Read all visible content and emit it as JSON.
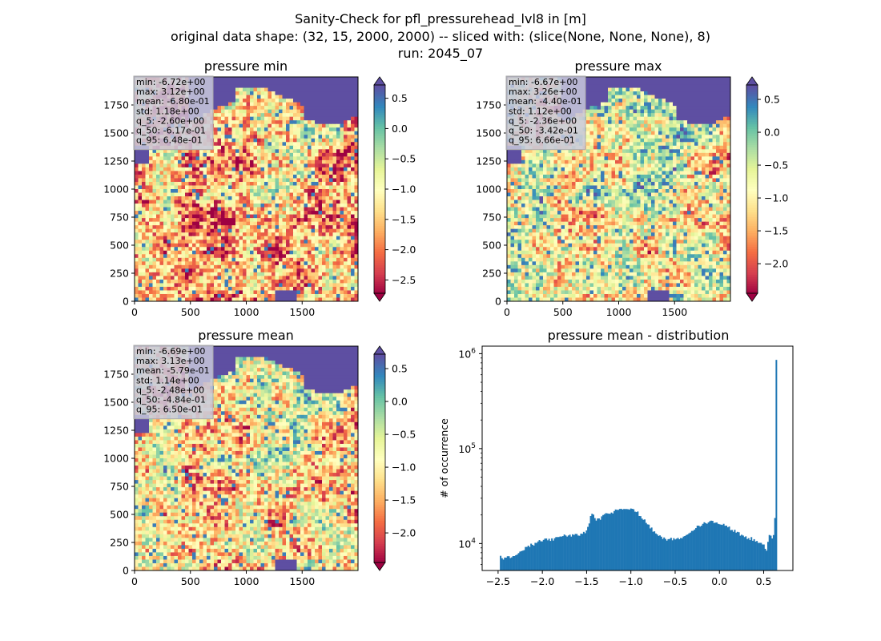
{
  "figure": {
    "suptitle": [
      "Sanity-Check for pfl_pressurehead_lvl8 in [m]",
      "original data shape: (32, 15, 2000, 2000) -- sliced with: (slice(None, None, None), 8)",
      "run: 2045_07"
    ]
  },
  "colors": {
    "colormap": "Spectral",
    "ocean": "#5e4fa2",
    "hist_bar": "#1f77b4",
    "stats_box": "#c8c8dc"
  },
  "chart_data": [
    {
      "type": "heatmap",
      "title": "pressure min",
      "x_ticks": [
        "0",
        "500",
        "1000",
        "1500"
      ],
      "y_ticks": [
        "0",
        "250",
        "500",
        "750",
        "1000",
        "1250",
        "1500",
        "1750"
      ],
      "xlim": [
        0,
        2000
      ],
      "ylim": [
        0,
        2000
      ],
      "colorbar": {
        "vmin": -2.72,
        "vmax": 0.72,
        "ticks": [
          -2.5,
          -2.0,
          -1.5,
          -1.0,
          -0.5,
          0.0,
          0.5
        ],
        "tick_labels": [
          "−2.5",
          "−2.0",
          "−1.5",
          "−1.0",
          "−0.5",
          "0.0",
          "0.5"
        ],
        "extend": "both"
      },
      "stats": [
        "min: -6.72e+00",
        "max: 3.12e+00",
        "mean: -6.80e-01",
        "std: 1.18e+00",
        "q_5: -2.60e+00",
        "q_50: -6.17e-01",
        "q_95: 6.48e-01"
      ]
    },
    {
      "type": "heatmap",
      "title": "pressure max",
      "x_ticks": [
        "0",
        "500",
        "1000",
        "1500"
      ],
      "y_ticks": [
        "0",
        "250",
        "500",
        "750",
        "1000",
        "1250",
        "1500",
        "1750"
      ],
      "xlim": [
        0,
        2000
      ],
      "ylim": [
        0,
        2000
      ],
      "colorbar": {
        "vmin": -2.45,
        "vmax": 0.72,
        "ticks": [
          -2.0,
          -1.5,
          -1.0,
          -0.5,
          0.0,
          0.5
        ],
        "tick_labels": [
          "−2.0",
          "−1.5",
          "−1.0",
          "−0.5",
          "0.0",
          "0.5"
        ],
        "extend": "both"
      },
      "stats": [
        "min: -6.67e+00",
        "max: 3.26e+00",
        "mean: -4.40e-01",
        "std: 1.12e+00",
        "q_5: -2.36e+00",
        "q_50: -3.42e-01",
        "q_95: 6.66e-01"
      ]
    },
    {
      "type": "heatmap",
      "title": "pressure mean",
      "x_ticks": [
        "0",
        "500",
        "1000",
        "1500"
      ],
      "y_ticks": [
        "0",
        "250",
        "500",
        "750",
        "1000",
        "1250",
        "1500",
        "1750"
      ],
      "xlim": [
        0,
        2000
      ],
      "ylim": [
        0,
        2000
      ],
      "colorbar": {
        "vmin": -2.45,
        "vmax": 0.72,
        "ticks": [
          -2.0,
          -1.5,
          -1.0,
          -0.5,
          0.0,
          0.5
        ],
        "tick_labels": [
          "−2.0",
          "−1.5",
          "−1.0",
          "−0.5",
          "0.0",
          "0.5"
        ],
        "extend": "both"
      },
      "stats": [
        "min: -6.69e+00",
        "max: 3.13e+00",
        "mean: -5.79e-01",
        "std: 1.14e+00",
        "q_5: -2.48e+00",
        "q_50: -4.84e-01",
        "q_95: 6.50e-01"
      ]
    },
    {
      "type": "bar",
      "title": "pressure mean - distribution",
      "ylabel": "# of occurrence",
      "xlabel": "",
      "yscale": "log",
      "xlim": [
        -2.68,
        0.83
      ],
      "ylim": [
        5200,
        1200000
      ],
      "x_ticks": [
        -2.5,
        -2.0,
        -1.5,
        -1.0,
        -0.5,
        0.0,
        0.5
      ],
      "x_tick_labels": [
        "−2.5",
        "−2.0",
        "−1.5",
        "−1.0",
        "−0.5",
        "0.0",
        "0.5"
      ],
      "y_ticks": [
        10000,
        100000,
        1000000
      ],
      "y_tick_labels": [
        [
          "10",
          "4"
        ],
        [
          "10",
          "5"
        ],
        [
          "10",
          "6"
        ]
      ],
      "bin_range": [
        -2.48,
        0.65
      ],
      "profile": [
        [
          -2.48,
          7700
        ],
        [
          -2.45,
          7000
        ],
        [
          -2.4,
          7100
        ],
        [
          -2.35,
          7200
        ],
        [
          -2.3,
          7500
        ],
        [
          -2.25,
          8200
        ],
        [
          -2.2,
          8800
        ],
        [
          -2.15,
          9400
        ],
        [
          -2.1,
          9900
        ],
        [
          -2.05,
          10300
        ],
        [
          -2.0,
          10700
        ],
        [
          -1.95,
          10900
        ],
        [
          -1.9,
          11000
        ],
        [
          -1.85,
          11200
        ],
        [
          -1.8,
          11600
        ],
        [
          -1.75,
          12000
        ],
        [
          -1.7,
          12100
        ],
        [
          -1.65,
          12200
        ],
        [
          -1.6,
          12400
        ],
        [
          -1.55,
          12700
        ],
        [
          -1.5,
          13200
        ],
        [
          -1.47,
          16500
        ],
        [
          -1.45,
          21000
        ],
        [
          -1.42,
          19500
        ],
        [
          -1.4,
          17500
        ],
        [
          -1.35,
          18500
        ],
        [
          -1.3,
          19800
        ],
        [
          -1.25,
          20800
        ],
        [
          -1.2,
          21800
        ],
        [
          -1.15,
          22800
        ],
        [
          -1.1,
          23400
        ],
        [
          -1.05,
          23600
        ],
        [
          -1.0,
          23200
        ],
        [
          -0.95,
          22000
        ],
        [
          -0.9,
          20000
        ],
        [
          -0.85,
          17500
        ],
        [
          -0.8,
          15300
        ],
        [
          -0.75,
          13700
        ],
        [
          -0.7,
          12500
        ],
        [
          -0.65,
          11700
        ],
        [
          -0.6,
          11200
        ],
        [
          -0.55,
          11000
        ],
        [
          -0.5,
          11100
        ],
        [
          -0.45,
          11500
        ],
        [
          -0.4,
          12000
        ],
        [
          -0.35,
          12800
        ],
        [
          -0.3,
          13800
        ],
        [
          -0.25,
          14800
        ],
        [
          -0.2,
          15800
        ],
        [
          -0.15,
          16600
        ],
        [
          -0.1,
          17000
        ],
        [
          -0.05,
          17000
        ],
        [
          0.0,
          16500
        ],
        [
          0.05,
          15700
        ],
        [
          0.1,
          14800
        ],
        [
          0.15,
          13800
        ],
        [
          0.2,
          13000
        ],
        [
          0.25,
          12300
        ],
        [
          0.3,
          11800
        ],
        [
          0.35,
          11300
        ],
        [
          0.4,
          10800
        ],
        [
          0.45,
          10200
        ],
        [
          0.5,
          9600
        ],
        [
          0.53,
          8500
        ],
        [
          0.56,
          12500
        ],
        [
          0.59,
          11800
        ],
        [
          0.62,
          12000
        ],
        [
          0.63,
          25000
        ],
        [
          0.645,
          860000
        ],
        [
          0.65,
          860000
        ]
      ]
    }
  ]
}
